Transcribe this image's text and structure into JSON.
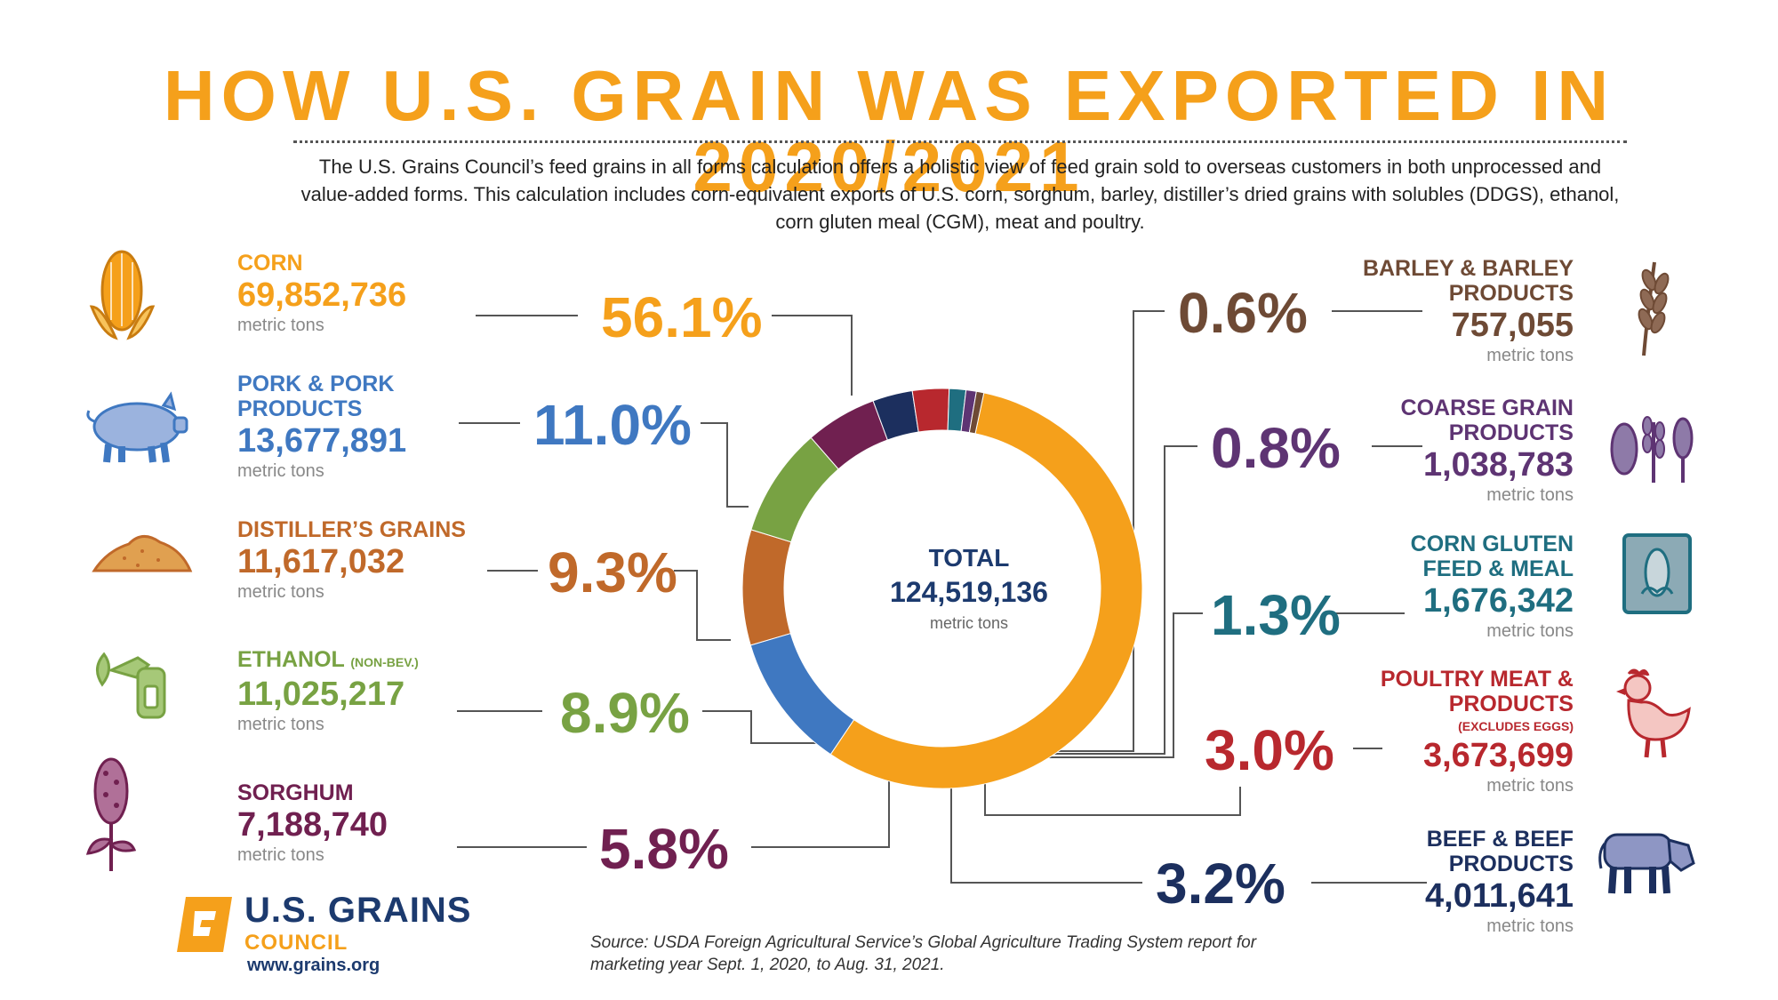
{
  "title": "HOW U.S. GRAIN WAS EXPORTED IN 2020/2021",
  "intro": "The U.S. Grains Council’s feed grains in all forms calculation offers a holistic view of feed grain sold to overseas customers in both unprocessed and value-added forms. This calculation includes corn-equivalent exports of U.S. corn, sorghum, barley, distiller’s dried grains with solubles (DDGS), ethanol, corn gluten meal (CGM), meat and poultry.",
  "unit_label": "metric tons",
  "total": {
    "label": "TOTAL",
    "value": "124,519,136",
    "unit": "metric tons"
  },
  "items": {
    "corn": {
      "name": "CORN",
      "value": "69,852,736",
      "pct": "56.1%"
    },
    "pork": {
      "name_line1": "PORK & PORK",
      "name_line2": "PRODUCTS",
      "value": "13,677,891",
      "pct": "11.0%"
    },
    "distillers": {
      "name": "DISTILLER’S GRAINS",
      "value": "11,617,032",
      "pct": "9.3%"
    },
    "ethanol": {
      "name": "ETHANOL",
      "note": "(NON-BEV.)",
      "value": "11,025,217",
      "pct": "8.9%"
    },
    "sorghum": {
      "name": "SORGHUM",
      "value": "7,188,740",
      "pct": "5.8%"
    },
    "barley": {
      "name_line1": "BARLEY & BARLEY",
      "name_line2": "PRODUCTS",
      "value": "757,055",
      "pct": "0.6%"
    },
    "coarse": {
      "name_line1": "COARSE GRAIN",
      "name_line2": "PRODUCTS",
      "value": "1,038,783",
      "pct": "0.8%"
    },
    "gluten": {
      "name_line1": "CORN GLUTEN",
      "name_line2": "FEED & MEAL",
      "value": "1,676,342",
      "pct": "1.3%"
    },
    "poultry": {
      "name_line1": "POULTRY MEAT &",
      "name_line2": "PRODUCTS",
      "note": "(EXCLUDES EGGS)",
      "value": "3,673,699",
      "pct": "3.0%"
    },
    "beef": {
      "name_line1": "BEEF & BEEF",
      "name_line2": "PRODUCTS",
      "value": "4,011,641",
      "pct": "3.2%"
    }
  },
  "logo": {
    "main": "U.S. GRAINS",
    "sub": "COUNCIL",
    "url": "www.grains.org"
  },
  "source_line1": "Source: USDA Foreign Agricultural Service’s Global Agriculture Trading System report for",
  "source_line2": "marketing year Sept. 1, 2020, to Aug. 31, 2021.",
  "colors": {
    "corn": "#F5A01B",
    "pork": "#3F78C1",
    "distillers": "#C0692A",
    "ethanol": "#78A243",
    "sorghum": "#702050",
    "beef": "#1C2F5E",
    "poultry": "#B8282E",
    "gluten": "#1F6E80",
    "coarse": "#5E3473",
    "barley": "#6E4A35"
  },
  "chart_data": {
    "type": "pie",
    "title": "TOTAL 124,519,136 metric tons",
    "categories": [
      "Corn",
      "Pork & Pork Products",
      "Distiller’s Grains",
      "Ethanol (Non-Bev.)",
      "Sorghum",
      "Beef & Beef Products",
      "Poultry Meat & Products",
      "Corn Gluten Feed & Meal",
      "Coarse Grain Products",
      "Barley & Barley Products"
    ],
    "keys": [
      "corn",
      "pork",
      "distillers",
      "ethanol",
      "sorghum",
      "beef",
      "poultry",
      "gluten",
      "coarse",
      "barley"
    ],
    "values": [
      69852736,
      13677891,
      11617032,
      11025217,
      7188740,
      4011641,
      3673699,
      1676342,
      1038783,
      757055
    ],
    "percent": [
      56.1,
      11.0,
      9.3,
      8.9,
      5.8,
      3.2,
      3.0,
      1.3,
      0.8,
      0.6
    ],
    "unit": "metric tons",
    "donut": true
  }
}
